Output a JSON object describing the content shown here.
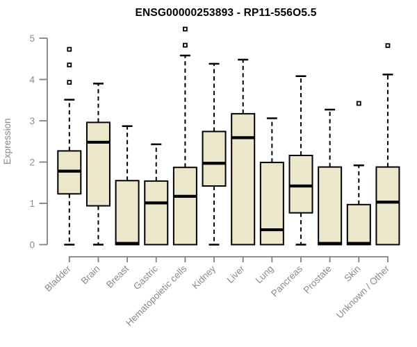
{
  "title": "ENSG00000253893 - RP11-556O5.5",
  "chart_data": {
    "type": "boxplot",
    "title": "ENSG00000253893 - RP11-556O5.5",
    "xlabel": "",
    "ylabel": "Expression",
    "ylim": [
      0,
      5.3
    ],
    "yticks": [
      0,
      1,
      2,
      3,
      4,
      5
    ],
    "grid": false,
    "legend": null,
    "categories": [
      "Bladder",
      "Brain",
      "Breast",
      "Gastric",
      "Hematopoietic cells",
      "Kidney",
      "Liver",
      "Lung",
      "Pancreas",
      "Prostate",
      "Skin",
      "Unknown / Other"
    ],
    "series": [
      {
        "name": "Bladder",
        "whisker_low": 0,
        "q1": 1.23,
        "median": 1.78,
        "q3": 2.27,
        "whisker_high": 3.51,
        "outliers": [
          3.93,
          4.35,
          4.73
        ]
      },
      {
        "name": "Brain",
        "whisker_low": 0,
        "q1": 0.94,
        "median": 2.48,
        "q3": 2.96,
        "whisker_high": 3.9,
        "outliers": []
      },
      {
        "name": "Breast",
        "whisker_low": 0,
        "q1": 0.0,
        "median": 0.03,
        "q3": 1.55,
        "whisker_high": 2.87,
        "outliers": []
      },
      {
        "name": "Gastric",
        "whisker_low": 0,
        "q1": 0.0,
        "median": 1.01,
        "q3": 1.54,
        "whisker_high": 2.43,
        "outliers": []
      },
      {
        "name": "Hematopoietic cells",
        "whisker_low": 0,
        "q1": 0.0,
        "median": 1.17,
        "q3": 1.87,
        "whisker_high": 4.58,
        "outliers": [
          4.83,
          5.22
        ]
      },
      {
        "name": "Kidney",
        "whisker_low": 0,
        "q1": 1.42,
        "median": 1.97,
        "q3": 2.74,
        "whisker_high": 4.38,
        "outliers": []
      },
      {
        "name": "Liver",
        "whisker_low": 0,
        "q1": 0.0,
        "median": 2.59,
        "q3": 3.17,
        "whisker_high": 4.48,
        "outliers": []
      },
      {
        "name": "Lung",
        "whisker_low": 0,
        "q1": 0.0,
        "median": 0.36,
        "q3": 1.99,
        "whisker_high": 3.06,
        "outliers": []
      },
      {
        "name": "Pancreas",
        "whisker_low": 0,
        "q1": 0.77,
        "median": 1.42,
        "q3": 2.16,
        "whisker_high": 4.08,
        "outliers": []
      },
      {
        "name": "Prostate",
        "whisker_low": 0,
        "q1": 0.0,
        "median": 0.03,
        "q3": 1.88,
        "whisker_high": 3.27,
        "outliers": []
      },
      {
        "name": "Skin",
        "whisker_low": 0,
        "q1": 0.0,
        "median": 0.03,
        "q3": 0.97,
        "whisker_high": 1.92,
        "outliers": [
          3.42
        ]
      },
      {
        "name": "Unknown / Other",
        "whisker_low": 0,
        "q1": 0.0,
        "median": 1.03,
        "q3": 1.88,
        "whisker_high": 4.12,
        "outliers": [
          4.82
        ]
      }
    ],
    "colors": {
      "box_fill": "#ece7cb",
      "box_border": "#000000",
      "median": "#000000",
      "whisker": "#000000",
      "outlier_stroke": "#000000",
      "outlier_fill": "#ffffff",
      "axis_line": "#808080",
      "axis_text": "#8a8a8a",
      "title_text": "#000000",
      "background": "#ffffff"
    }
  }
}
